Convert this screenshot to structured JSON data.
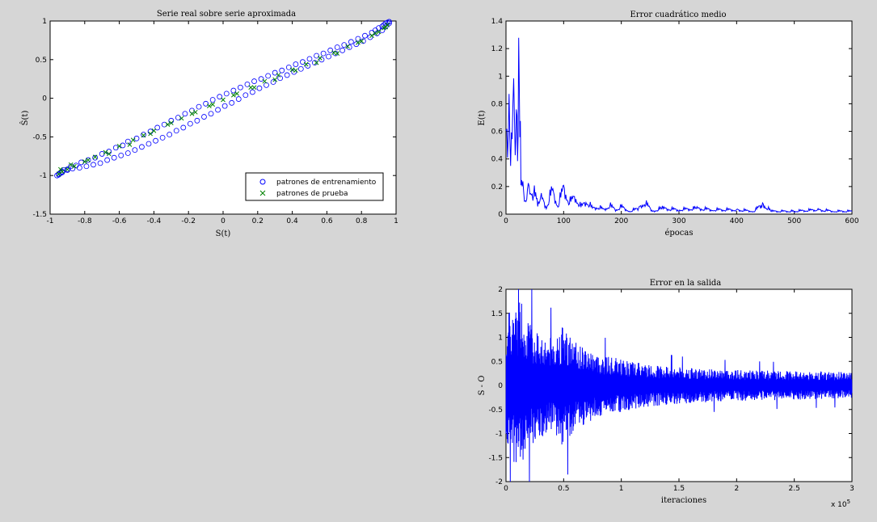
{
  "window": {
    "background": "#d6d6d6"
  },
  "chart_data": [
    {
      "type": "scatter",
      "title": "Serie real sobre serie aproximada",
      "xlabel": "S(t)",
      "ylabel": "Ŝ(t)",
      "xlim": [
        -1,
        1
      ],
      "ylim": [
        -1.5,
        1
      ],
      "xticks": [
        -1,
        -0.8,
        -0.6,
        -0.4,
        -0.2,
        0,
        0.2,
        0.4,
        0.6,
        0.8,
        1
      ],
      "yticks": [
        -1.5,
        -1,
        -0.5,
        0,
        0.5,
        1
      ],
      "grid": false,
      "legend": "bottom-right",
      "series": [
        {
          "name": "patrones de entrenamiento",
          "marker": "circle",
          "color": "#0000ff",
          "x": [
            -0.96,
            -0.95,
            -0.94,
            -0.93,
            -0.92,
            -0.9,
            -0.88,
            -0.85,
            -0.82,
            -0.78,
            -0.74,
            -0.7,
            -0.66,
            -0.62,
            -0.58,
            -0.55,
            -0.5,
            -0.46,
            -0.42,
            -0.38,
            -0.34,
            -0.3,
            -0.26,
            -0.22,
            -0.18,
            -0.14,
            -0.1,
            -0.06,
            -0.02,
            0.02,
            0.06,
            0.1,
            0.14,
            0.18,
            0.22,
            0.26,
            0.3,
            0.34,
            0.38,
            0.42,
            0.46,
            0.5,
            0.54,
            0.58,
            0.62,
            0.66,
            0.7,
            0.74,
            0.78,
            0.82,
            0.86,
            0.88,
            0.9,
            0.92,
            0.93,
            0.94,
            0.95,
            0.96,
            -0.95,
            -0.93,
            -0.9,
            -0.87,
            -0.83,
            -0.79,
            -0.75,
            -0.71,
            -0.67,
            -0.63,
            -0.59,
            -0.55,
            -0.51,
            -0.47,
            -0.43,
            -0.39,
            -0.35,
            -0.31,
            -0.27,
            -0.23,
            -0.19,
            -0.15,
            -0.11,
            -0.07,
            -0.03,
            0.01,
            0.05,
            0.09,
            0.13,
            0.17,
            0.21,
            0.25,
            0.29,
            0.33,
            0.37,
            0.41,
            0.45,
            0.49,
            0.53,
            0.57,
            0.61,
            0.65,
            0.69,
            0.73,
            0.77,
            0.81,
            0.85,
            0.89,
            0.92,
            0.94,
            0.96
          ],
          "y": [
            -1.0,
            -0.99,
            -0.97,
            -0.96,
            -0.93,
            -0.92,
            -0.88,
            -0.87,
            -0.83,
            -0.8,
            -0.77,
            -0.72,
            -0.69,
            -0.64,
            -0.61,
            -0.56,
            -0.52,
            -0.47,
            -0.43,
            -0.38,
            -0.34,
            -0.29,
            -0.25,
            -0.2,
            -0.16,
            -0.11,
            -0.07,
            -0.02,
            0.02,
            0.06,
            0.1,
            0.14,
            0.18,
            0.22,
            0.25,
            0.29,
            0.33,
            0.36,
            0.4,
            0.44,
            0.47,
            0.51,
            0.55,
            0.58,
            0.62,
            0.66,
            0.69,
            0.73,
            0.77,
            0.81,
            0.85,
            0.88,
            0.91,
            0.93,
            0.95,
            0.97,
            0.98,
            0.99,
            -0.98,
            -0.95,
            -0.93,
            -0.91,
            -0.9,
            -0.88,
            -0.86,
            -0.84,
            -0.8,
            -0.77,
            -0.74,
            -0.71,
            -0.67,
            -0.63,
            -0.59,
            -0.55,
            -0.51,
            -0.47,
            -0.42,
            -0.38,
            -0.33,
            -0.29,
            -0.24,
            -0.2,
            -0.15,
            -0.1,
            -0.06,
            -0.01,
            0.04,
            0.08,
            0.13,
            0.17,
            0.21,
            0.26,
            0.3,
            0.34,
            0.38,
            0.42,
            0.46,
            0.5,
            0.54,
            0.58,
            0.62,
            0.66,
            0.7,
            0.74,
            0.79,
            0.84,
            0.88,
            0.93,
            0.97
          ]
        },
        {
          "name": "patrones de prueba",
          "marker": "x",
          "color": "#008000",
          "x": [
            -0.95,
            -0.93,
            -0.9,
            -0.86,
            -0.8,
            -0.74,
            -0.68,
            -0.6,
            -0.52,
            -0.46,
            -0.4,
            -0.32,
            -0.24,
            -0.16,
            -0.08,
            0.0,
            0.08,
            0.16,
            0.24,
            0.32,
            0.4,
            0.48,
            0.56,
            0.64,
            0.72,
            0.8,
            0.86,
            0.9,
            0.93,
            0.95,
            -0.94,
            -0.88,
            -0.78,
            -0.66,
            -0.54,
            -0.42,
            -0.3,
            -0.18,
            -0.06,
            0.06,
            0.18,
            0.3,
            0.42,
            0.54,
            0.66,
            0.78,
            0.88,
            0.94
          ],
          "y": [
            -0.98,
            -0.95,
            -0.92,
            -0.88,
            -0.82,
            -0.76,
            -0.7,
            -0.62,
            -0.54,
            -0.48,
            -0.42,
            -0.34,
            -0.26,
            -0.18,
            -0.1,
            -0.02,
            0.06,
            0.14,
            0.22,
            0.3,
            0.37,
            0.44,
            0.52,
            0.59,
            0.67,
            0.74,
            0.81,
            0.86,
            0.91,
            0.95,
            -0.92,
            -0.86,
            -0.8,
            -0.72,
            -0.6,
            -0.46,
            -0.32,
            -0.2,
            -0.08,
            0.04,
            0.14,
            0.24,
            0.36,
            0.46,
            0.58,
            0.72,
            0.84,
            0.92
          ]
        }
      ]
    },
    {
      "type": "line",
      "title": "Error cuadrático medio",
      "xlabel": "épocas",
      "ylabel": "E(t)",
      "xlim": [
        0,
        600
      ],
      "ylim": [
        0,
        1.4
      ],
      "xticks": [
        0,
        100,
        200,
        300,
        400,
        500,
        600
      ],
      "yticks": [
        0,
        0.2,
        0.4,
        0.6,
        0.8,
        1,
        1.2,
        1.4
      ],
      "grid": false,
      "series": [
        {
          "color": "#0000ff",
          "x": [
            0,
            4,
            8,
            12,
            16,
            18,
            20,
            22,
            24,
            26,
            28,
            32,
            36,
            40,
            44,
            48,
            55,
            60,
            70,
            80,
            90,
            100,
            110,
            120,
            130,
            140,
            150,
            160,
            170,
            180,
            190,
            200,
            215,
            230,
            240,
            255,
            270,
            300,
            330,
            360,
            400,
            430,
            445,
            460,
            500,
            540,
            570,
            600
          ],
          "y": [
            0.52,
            0.62,
            0.5,
            0.8,
            0.55,
            0.7,
            0.45,
            1.1,
            0.6,
            0.3,
            0.2,
            0.12,
            0.1,
            0.24,
            0.12,
            0.15,
            0.08,
            0.12,
            0.05,
            0.16,
            0.06,
            0.18,
            0.08,
            0.12,
            0.05,
            0.09,
            0.04,
            0.05,
            0.03,
            0.06,
            0.03,
            0.05,
            0.02,
            0.04,
            0.08,
            0.02,
            0.04,
            0.03,
            0.04,
            0.03,
            0.03,
            0.02,
            0.07,
            0.02,
            0.02,
            0.03,
            0.02,
            0.02
          ]
        }
      ]
    },
    {
      "type": "line",
      "title": "Error en la salida",
      "xlabel": "iteraciones",
      "ylabel": "S - O",
      "xlim": [
        0,
        3
      ],
      "ylim": [
        -2,
        2
      ],
      "xticks": [
        0,
        0.5,
        1,
        1.5,
        2,
        2.5,
        3
      ],
      "yticks": [
        -2,
        -1.5,
        -1,
        -0.5,
        0,
        0.5,
        1,
        1.5,
        2
      ],
      "x_multiplier": "x 10^5",
      "grid": false,
      "series": [
        {
          "color": "#0000ff",
          "envelope_x": [
            0,
            0.1,
            0.13,
            0.2,
            0.3,
            0.4,
            0.5,
            0.6,
            0.7,
            0.8,
            1.0,
            1.2,
            1.5,
            2.0,
            2.5,
            3.0
          ],
          "envelope_y": [
            1.5,
            1.7,
            1.95,
            1.3,
            1.1,
            1.0,
            1.3,
            0.9,
            0.8,
            0.65,
            0.55,
            0.45,
            0.38,
            0.32,
            0.3,
            0.28
          ]
        }
      ]
    }
  ]
}
